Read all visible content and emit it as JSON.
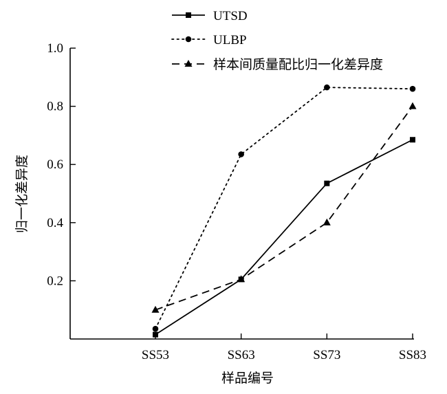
{
  "chart_data": {
    "type": "line",
    "title": "",
    "xlabel": "样品编号",
    "ylabel": "归一化差异度",
    "categories": [
      "SS53",
      "SS63",
      "SS73",
      "SS83"
    ],
    "ylim": [
      0,
      1.0
    ],
    "yticks": [
      0.2,
      0.4,
      0.6,
      0.8,
      1.0
    ],
    "ytick_labels": [
      "0.2",
      "0.4",
      "0.6",
      "0.8",
      "1.0"
    ],
    "grid": false,
    "legend_position": "top-center",
    "series": [
      {
        "name": "UTSD",
        "values": [
          0.015,
          0.205,
          0.535,
          0.685
        ],
        "line_style": "solid",
        "marker": "square",
        "color": "#000000"
      },
      {
        "name": "ULBP",
        "values": [
          0.035,
          0.635,
          0.865,
          0.86
        ],
        "line_style": "dotted",
        "marker": "circle",
        "color": "#000000"
      },
      {
        "name": "样本间质量配比归一化差异度",
        "values": [
          0.1,
          0.205,
          0.4,
          0.8
        ],
        "line_style": "dashed",
        "marker": "triangle",
        "color": "#000000"
      }
    ]
  }
}
